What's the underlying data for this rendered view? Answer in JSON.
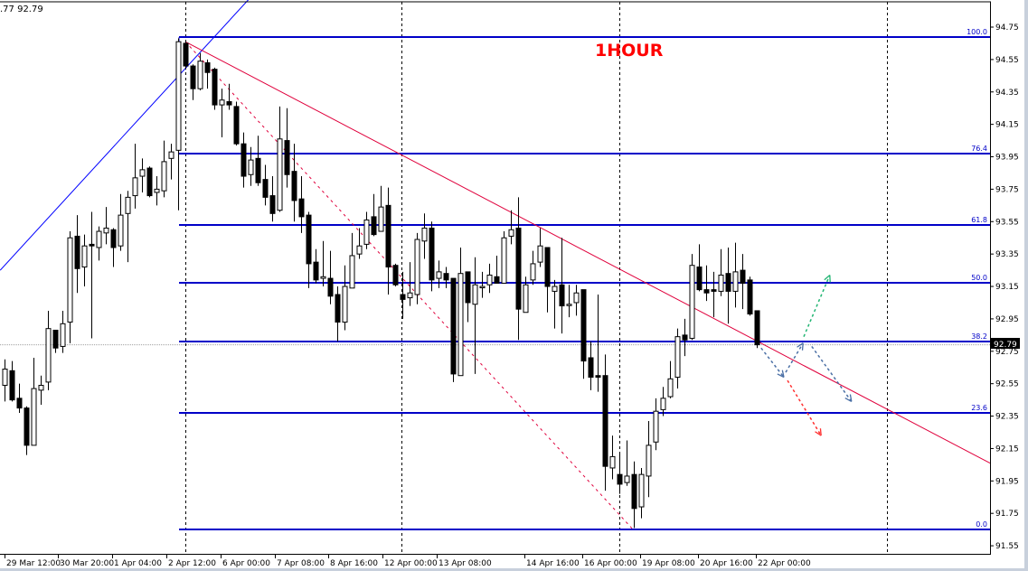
{
  "header": {
    "info_text": ".77 92.79"
  },
  "annotation": {
    "label": "1HOUR",
    "color": "#ff0000"
  },
  "colors": {
    "fib": "#0000c8",
    "trend_blue": "#0000ff",
    "trend_red": "#e0003c",
    "arrow_blue": "#4a6fa5",
    "arrow_green": "#22b573",
    "arrow_red": "#ff3030"
  },
  "chart_data": {
    "type": "candlestick",
    "timeframe_label": "1HOUR",
    "ylim": [
      91.55,
      94.75
    ],
    "y_ticks": [
      "94.75",
      "94.55",
      "94.35",
      "94.15",
      "93.95",
      "93.75",
      "93.55",
      "93.35",
      "93.15",
      "92.95",
      "92.75",
      "92.55",
      "92.35",
      "92.15",
      "91.95",
      "91.75",
      "91.55"
    ],
    "x_tick_labels": [
      "29 Mar 12:00",
      "30 Mar 20:00",
      "1 Apr 04:00",
      "2 Apr 12:00",
      "6 Apr 00:00",
      "7 Apr 08:00",
      "8 Apr 16:00",
      "12 Apr 00:00",
      "13 Apr 08:00",
      "14 Apr 16:00",
      "16 Apr 00:00",
      "19 Apr 08:00",
      "20 Apr 16:00",
      "22 Apr 00:00"
    ],
    "current_price": "92.79",
    "candles_ohlc": [
      [
        92.54,
        92.7,
        92.44,
        92.64
      ],
      [
        92.63,
        92.69,
        92.44,
        92.45
      ],
      [
        92.46,
        92.55,
        92.37,
        92.4
      ],
      [
        92.4,
        92.41,
        92.11,
        92.17
      ],
      [
        92.17,
        92.71,
        92.17,
        92.52
      ],
      [
        92.51,
        92.6,
        92.42,
        92.54
      ],
      [
        92.56,
        93.0,
        92.51,
        92.89
      ],
      [
        92.88,
        92.88,
        92.74,
        92.77
      ],
      [
        92.78,
        93.0,
        92.74,
        92.92
      ],
      [
        92.93,
        93.49,
        92.8,
        93.45
      ],
      [
        93.46,
        93.59,
        93.11,
        93.26
      ],
      [
        93.27,
        93.47,
        93.15,
        93.4
      ],
      [
        93.41,
        93.61,
        92.83,
        93.4
      ],
      [
        93.39,
        93.52,
        93.31,
        93.49
      ],
      [
        93.48,
        93.64,
        93.41,
        93.51
      ],
      [
        93.5,
        93.51,
        93.27,
        93.39
      ],
      [
        93.4,
        93.72,
        93.37,
        93.59
      ],
      [
        93.6,
        93.74,
        93.3,
        93.7
      ],
      [
        93.71,
        94.03,
        93.63,
        93.82
      ],
      [
        93.83,
        93.94,
        93.73,
        93.87
      ],
      [
        93.88,
        93.89,
        93.7,
        93.71
      ],
      [
        93.73,
        93.83,
        93.65,
        93.75
      ],
      [
        93.74,
        94.05,
        93.7,
        93.92
      ],
      [
        93.94,
        94.03,
        93.81,
        93.98
      ],
      [
        93.99,
        94.68,
        93.62,
        94.66
      ],
      [
        94.65,
        94.67,
        94.49,
        94.51
      ],
      [
        94.51,
        94.52,
        94.3,
        94.37
      ],
      [
        94.37,
        94.59,
        94.36,
        94.54
      ],
      [
        94.53,
        94.55,
        94.37,
        94.47
      ],
      [
        94.49,
        94.5,
        94.24,
        94.27
      ],
      [
        94.27,
        94.37,
        94.07,
        94.3
      ],
      [
        94.29,
        94.4,
        94.24,
        94.27
      ],
      [
        94.26,
        94.29,
        94.02,
        94.03
      ],
      [
        94.03,
        94.1,
        93.76,
        93.83
      ],
      [
        93.84,
        94.01,
        93.77,
        93.93
      ],
      [
        93.94,
        94.08,
        93.77,
        93.79
      ],
      [
        93.81,
        93.9,
        93.65,
        93.7
      ],
      [
        93.71,
        93.83,
        93.55,
        93.6
      ],
      [
        93.62,
        94.26,
        93.61,
        94.06
      ],
      [
        94.05,
        94.25,
        93.76,
        93.84
      ],
      [
        93.86,
        94.03,
        93.55,
        93.68
      ],
      [
        93.69,
        93.83,
        93.48,
        93.58
      ],
      [
        93.59,
        93.61,
        93.14,
        93.29
      ],
      [
        93.3,
        93.38,
        93.17,
        93.19
      ],
      [
        93.2,
        93.43,
        93.15,
        93.21
      ],
      [
        93.2,
        93.37,
        93.04,
        93.09
      ],
      [
        93.1,
        93.15,
        92.81,
        92.93
      ],
      [
        92.93,
        93.28,
        92.88,
        93.15
      ],
      [
        93.14,
        93.48,
        93.14,
        93.34
      ],
      [
        93.35,
        93.51,
        93.32,
        93.4
      ],
      [
        93.41,
        93.61,
        93.38,
        93.56
      ],
      [
        93.58,
        93.72,
        93.46,
        93.47
      ],
      [
        93.49,
        93.77,
        93.49,
        93.64
      ],
      [
        93.65,
        93.76,
        93.1,
        93.27
      ],
      [
        93.28,
        93.29,
        93.15,
        93.16
      ],
      [
        93.1,
        93.24,
        92.95,
        93.07
      ],
      [
        93.08,
        93.3,
        93.03,
        93.11
      ],
      [
        93.1,
        93.48,
        93.04,
        93.44
      ],
      [
        93.43,
        93.6,
        93.32,
        93.51
      ],
      [
        93.51,
        93.55,
        93.12,
        93.19
      ],
      [
        93.2,
        93.31,
        93.14,
        93.24
      ],
      [
        93.23,
        93.27,
        93.14,
        93.19
      ],
      [
        93.2,
        93.2,
        92.56,
        92.61
      ],
      [
        92.6,
        93.39,
        92.6,
        93.23
      ],
      [
        93.24,
        93.24,
        92.93,
        93.05
      ],
      [
        93.04,
        93.33,
        92.61,
        93.16
      ],
      [
        93.15,
        93.24,
        93.08,
        93.15
      ],
      [
        93.16,
        93.29,
        93.11,
        93.22
      ],
      [
        93.21,
        93.34,
        93.17,
        93.17
      ],
      [
        93.17,
        93.49,
        93.17,
        93.45
      ],
      [
        93.46,
        93.62,
        93.41,
        93.5
      ],
      [
        93.51,
        93.7,
        92.82,
        93.01
      ],
      [
        92.99,
        93.21,
        92.99,
        93.16
      ],
      [
        93.19,
        93.37,
        93.16,
        93.29
      ],
      [
        93.3,
        93.51,
        93.27,
        93.4
      ],
      [
        93.39,
        93.39,
        92.99,
        93.15
      ],
      [
        93.12,
        93.19,
        92.89,
        93.15
      ],
      [
        93.16,
        93.45,
        92.86,
        93.03
      ],
      [
        93.04,
        93.16,
        92.96,
        93.04
      ],
      [
        93.05,
        93.16,
        92.97,
        93.11
      ],
      [
        93.13,
        93.13,
        92.58,
        92.69
      ],
      [
        92.71,
        92.81,
        92.51,
        92.59
      ],
      [
        92.6,
        93.1,
        92.5,
        92.59
      ],
      [
        92.6,
        92.73,
        91.89,
        92.04
      ],
      [
        92.03,
        92.23,
        91.96,
        92.1
      ],
      [
        91.99,
        92.13,
        91.87,
        91.93
      ],
      [
        91.94,
        92.2,
        91.92,
        91.98
      ],
      [
        91.99,
        92.07,
        91.66,
        91.78
      ],
      [
        91.79,
        92.03,
        91.72,
        91.99
      ],
      [
        91.98,
        92.32,
        91.85,
        92.17
      ],
      [
        92.19,
        92.46,
        92.14,
        92.38
      ],
      [
        92.39,
        92.53,
        92.35,
        92.46
      ],
      [
        92.47,
        92.69,
        92.46,
        92.58
      ],
      [
        92.59,
        92.89,
        92.52,
        92.84
      ],
      [
        92.85,
        92.95,
        92.72,
        92.82
      ],
      [
        92.83,
        93.35,
        92.82,
        93.28
      ],
      [
        93.27,
        93.41,
        93.12,
        93.13
      ],
      [
        93.13,
        93.28,
        93.06,
        93.11
      ],
      [
        93.13,
        93.24,
        92.96,
        93.12
      ],
      [
        93.12,
        93.38,
        93.09,
        93.22
      ],
      [
        93.23,
        93.39,
        92.92,
        93.12
      ],
      [
        93.12,
        93.42,
        93.02,
        93.24
      ],
      [
        93.25,
        93.35,
        93.01,
        93.17
      ],
      [
        93.19,
        93.21,
        92.97,
        92.98
      ],
      [
        93.0,
        93.0,
        92.77,
        92.79
      ]
    ],
    "fibonacci": {
      "high": 94.69,
      "low": 91.65,
      "levels": [
        {
          "label": "100.0",
          "price": 94.69
        },
        {
          "label": "76.4",
          "price": 93.97
        },
        {
          "label": "61.8",
          "price": 93.53
        },
        {
          "label": "50.0",
          "price": 93.17
        },
        {
          "label": "38.2",
          "price": 92.81
        },
        {
          "label": "23.6",
          "price": 92.37
        },
        {
          "label": "0.0",
          "price": 91.65
        }
      ]
    },
    "trendlines": [
      {
        "kind": "solid",
        "color": "blue",
        "from": [
          -0.6,
          93.25
        ],
        "to": [
          36,
          95.03
        ]
      },
      {
        "kind": "solid",
        "color": "red",
        "from": [
          25,
          94.66
        ],
        "to": [
          136.25,
          92.06
        ]
      },
      {
        "kind": "dashed",
        "color": "red",
        "from": [
          25,
          94.66
        ],
        "to": [
          86.9,
          91.65
        ]
      }
    ],
    "projection_arrows": [
      {
        "color": "blue",
        "from": [
          104.6,
          92.77
        ],
        "to": [
          107.75,
          92.59
        ]
      },
      {
        "color": "blue",
        "from": [
          108,
          92.62
        ],
        "to": [
          110.4,
          92.8
        ]
      },
      {
        "color": "blue",
        "from": [
          111.6,
          92.78
        ],
        "to": [
          117.1,
          92.44
        ]
      },
      {
        "color": "green",
        "from": [
          110.5,
          92.84
        ],
        "to": [
          114.1,
          93.22
        ]
      },
      {
        "color": "red",
        "from": [
          108.25,
          92.57
        ],
        "to": [
          112.9,
          92.23
        ]
      }
    ],
    "grid": false
  }
}
